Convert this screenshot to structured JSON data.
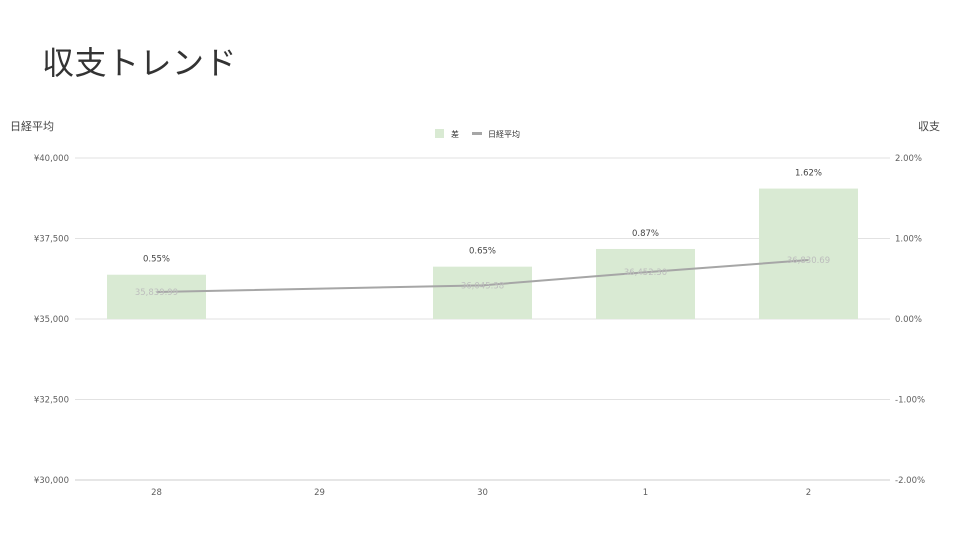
{
  "slide": {
    "title": "収支トレンド"
  },
  "chart_data": {
    "type": "bar",
    "categories": [
      "28",
      "29",
      "30",
      "1",
      "2"
    ],
    "series": [
      {
        "name": "差",
        "type": "bar",
        "axis": "right",
        "values": [
          0.55,
          null,
          0.65,
          0.87,
          1.62
        ],
        "labels": [
          "0.55%",
          "",
          "0.65%",
          "0.87%",
          "1.62%"
        ],
        "color": "#d9ead3"
      },
      {
        "name": "日経平均",
        "type": "line",
        "axis": "left",
        "values": [
          35839.99,
          null,
          36045.38,
          36452.3,
          36830.69
        ],
        "labels": [
          "35,839.99",
          "",
          "36,045.38",
          "36,452.30",
          "36,830.69"
        ],
        "color": "#a6a6a6"
      }
    ],
    "y_left": {
      "label": "日経平均",
      "lim": [
        30000,
        40000
      ],
      "ticks": [
        "¥30,000",
        "¥32,500",
        "¥35,000",
        "¥37,500",
        "¥40,000"
      ]
    },
    "y_right": {
      "label": "収支",
      "lim": [
        -2,
        2
      ],
      "ticks": [
        "-2.00%",
        "-1.00%",
        "0.00%",
        "1.00%",
        "2.00%"
      ]
    },
    "grid": true,
    "legend_position": "top"
  }
}
